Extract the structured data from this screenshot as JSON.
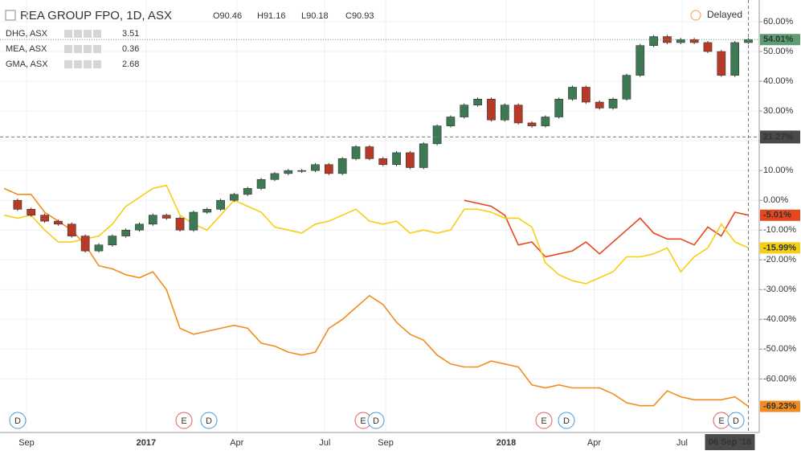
{
  "chart_data": {
    "type": "comparison",
    "title": "REA GROUP FPO, 1D, ASX",
    "ohlc": [
      "O90.46",
      "H91.16",
      "L90.18",
      "C90.93"
    ],
    "status": "Delayed",
    "legend": [
      {
        "name": "DHG, ASX",
        "value": "3.51"
      },
      {
        "name": "MEA, ASX",
        "value": "0.36"
      },
      {
        "name": "GMA, ASX",
        "value": "2.68"
      }
    ],
    "main": {
      "name": "REA",
      "up_color": "#3d7a54",
      "down_color": "#b83a26",
      "last_label": "54.01%",
      "badge_color": "#5c9e72",
      "values": [
        0,
        -3,
        -5,
        -7,
        -8,
        -12,
        -17,
        -15,
        -12,
        -10,
        -8,
        -5,
        -6,
        -10,
        -4,
        -3,
        0,
        2,
        4,
        7,
        9,
        10,
        10,
        12,
        9,
        14,
        18,
        14,
        12,
        16,
        11,
        19,
        25,
        28,
        32,
        34,
        27,
        32,
        26,
        25,
        28,
        34,
        38,
        33,
        31,
        34,
        42,
        52,
        55,
        53,
        54,
        53,
        50,
        42,
        53,
        54.01
      ]
    },
    "series": [
      {
        "name": "DHG",
        "color": "#e8461c",
        "last_label": "-5.01%",
        "values": [
          null,
          null,
          null,
          null,
          null,
          null,
          null,
          null,
          null,
          null,
          null,
          null,
          null,
          null,
          null,
          null,
          null,
          null,
          null,
          null,
          null,
          null,
          null,
          null,
          null,
          null,
          null,
          null,
          null,
          null,
          null,
          null,
          null,
          null,
          0,
          -1,
          -2,
          -5,
          -15,
          -14,
          -19,
          -18,
          -17,
          -14,
          -18,
          -14,
          -10,
          -6,
          -11,
          -13,
          -13,
          -15,
          -9,
          -12,
          -4,
          -5.01
        ]
      },
      {
        "name": "MEA",
        "color": "#f28c1e",
        "last_label": "-69.23%",
        "values": [
          4,
          2,
          2,
          -4,
          -7,
          -10,
          -15,
          -22,
          -23,
          -25,
          -26,
          -24,
          -30,
          -43,
          -45,
          -44,
          -43,
          -42,
          -43,
          -48,
          -49,
          -51,
          -52,
          -51,
          -43,
          -40,
          -36,
          -32,
          -35,
          -41,
          -45,
          -47,
          -52,
          -55,
          -56,
          -56,
          -54,
          -55,
          -56,
          -62,
          -63,
          -62,
          -63,
          -63,
          -63,
          -65,
          -68,
          -69,
          -69,
          -64,
          -66,
          -67,
          -67,
          -67,
          -66,
          -69.23
        ]
      },
      {
        "name": "GMA",
        "color": "#f5cf12",
        "last_label": "-15.99%",
        "values": [
          -5,
          -6,
          -5,
          -10,
          -14,
          -14,
          -13,
          -12,
          -8,
          -2,
          1,
          4,
          5,
          -5,
          -8,
          -10,
          -5,
          0,
          -2,
          -4,
          -9,
          -10,
          -11,
          -8,
          -7,
          -5,
          -3,
          -7,
          -8,
          -7,
          -11,
          -10,
          -11,
          -10,
          -3,
          -3,
          -4,
          -6,
          -6,
          -9,
          -21,
          -25,
          -27,
          -28,
          -26,
          -24,
          -19,
          -19,
          -18,
          -16,
          -24,
          -19,
          -16,
          -8,
          -14,
          -15.99
        ]
      }
    ],
    "xlim": [
      -0.3,
      55.8
    ],
    "xticks": [
      {
        "value": 1.66,
        "label": "Sep"
      },
      {
        "value": 10.5,
        "label": "2017"
      },
      {
        "value": 17.2,
        "label": "Apr"
      },
      {
        "value": 23.7,
        "label": "Jul"
      },
      {
        "value": 28.2,
        "label": "Sep"
      },
      {
        "value": 37.1,
        "label": "2018"
      },
      {
        "value": 43.6,
        "label": "Apr"
      },
      {
        "value": 50.1,
        "label": "Jul"
      }
    ],
    "ylim": [
      -78,
      67.3
    ],
    "yticks": [
      {
        "value": 60,
        "label": "60.00%"
      },
      {
        "value": 50,
        "label": "50.00%"
      },
      {
        "value": 40,
        "label": "40.00%"
      },
      {
        "value": 30,
        "label": "30.00%"
      },
      {
        "value": 20,
        "label": "20.00%"
      },
      {
        "value": 10,
        "label": "10.00%"
      },
      {
        "value": 0,
        "label": "0.00%"
      },
      {
        "value": -10,
        "label": "-10.00%"
      },
      {
        "value": -20,
        "label": "-20.00%"
      },
      {
        "value": -30,
        "label": "-30.00%"
      },
      {
        "value": -40,
        "label": "-40.00%"
      },
      {
        "value": -50,
        "label": "-50.00%"
      },
      {
        "value": -60,
        "label": "-60.00%"
      }
    ],
    "grid": true,
    "crosshair": {
      "value": 21.27,
      "label": "21.27%",
      "date": "06 Sep '18"
    },
    "events": [
      "D",
      "E",
      "D",
      "E",
      "D",
      "E",
      "D",
      "E",
      "D"
    ]
  }
}
